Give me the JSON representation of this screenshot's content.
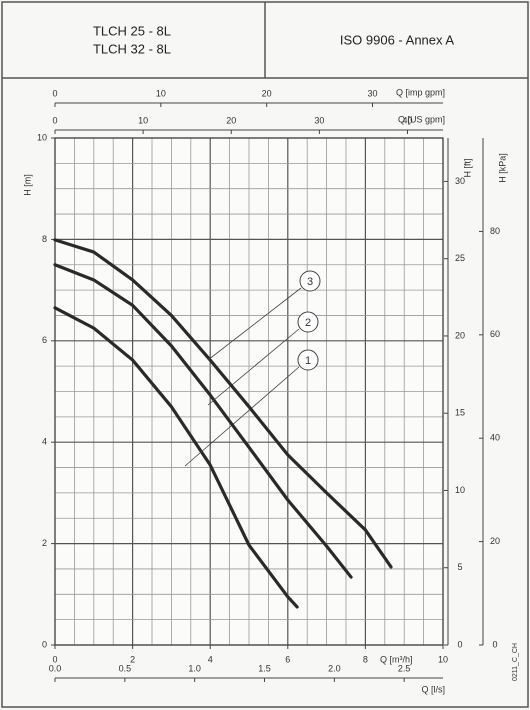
{
  "header": {
    "models": [
      "TLCH 25 - 8L",
      "TLCH 32 - 8L"
    ],
    "standard": "ISO 9906 - Annex A",
    "code": "0211_C_CH"
  },
  "chart_data": {
    "type": "line",
    "x_label": "Q [m³/h]",
    "y_label": "H [m]",
    "xlim": [
      0,
      10
    ],
    "ylim": [
      0,
      10
    ],
    "xticks": [
      0,
      2,
      4,
      6,
      8,
      10
    ],
    "yticks": [
      0,
      2,
      4,
      6,
      8,
      10
    ],
    "grid": true,
    "xgrid": [
      0,
      0.5,
      1,
      1.5,
      2,
      2.5,
      3,
      3.5,
      4,
      4.5,
      5,
      5.5,
      6,
      6.5,
      7,
      7.5,
      8,
      8.5,
      9,
      9.5,
      10
    ],
    "ygrid": [
      0,
      0.5,
      1,
      1.5,
      2,
      2.5,
      3,
      3.5,
      4,
      4.5,
      5,
      5.5,
      6,
      6.5,
      7,
      7.5,
      8,
      8.5,
      9,
      9.5,
      10
    ],
    "series": [
      {
        "name": "1",
        "color": "#2a2a2a",
        "x": [
          0,
          1,
          2,
          3,
          4,
          5,
          6,
          6.24
        ],
        "values": [
          6.65,
          6.25,
          5.62,
          4.7,
          3.55,
          1.97,
          0.95,
          0.75
        ]
      },
      {
        "name": "2",
        "color": "#2a2a2a",
        "x": [
          0,
          1,
          2,
          3,
          4,
          5,
          6,
          7,
          7.63
        ],
        "values": [
          7.5,
          7.2,
          6.7,
          5.9,
          4.93,
          3.9,
          2.86,
          1.95,
          1.34
        ]
      },
      {
        "name": "3",
        "color": "#2a2a2a",
        "x": [
          0,
          1,
          2,
          3,
          4,
          5,
          6,
          7,
          8,
          8.66
        ],
        "values": [
          7.99,
          7.75,
          7.2,
          6.5,
          5.62,
          4.7,
          3.75,
          3.0,
          2.27,
          1.54
        ]
      }
    ],
    "secondary_axes": [
      {
        "label": "Q [imp gpm]",
        "position": "top",
        "lim": [
          0,
          36.66
        ],
        "ticks": [
          0,
          10,
          20,
          30
        ]
      },
      {
        "label": "Q [US gpm]",
        "position": "top",
        "lim": [
          0,
          44.03
        ],
        "ticks": [
          0,
          10,
          20,
          30,
          40
        ]
      },
      {
        "label": "H [ft]",
        "position": "right",
        "lim": [
          0,
          32.81
        ],
        "ticks": [
          0,
          5,
          10,
          15,
          20,
          25,
          30
        ]
      },
      {
        "label": "H [kPa]",
        "position": "right",
        "lim": [
          0,
          98.07
        ],
        "ticks": [
          0,
          20,
          40,
          60,
          80
        ]
      },
      {
        "label": "Q [l/s]",
        "position": "bottom",
        "lim": [
          0,
          2.778
        ],
        "ticks": [
          {
            "value": 0,
            "label": "0.0"
          },
          0.5,
          {
            "value": 1,
            "label": "1.0"
          },
          1.5,
          {
            "value": 2,
            "label": "2.0"
          },
          2.5
        ]
      }
    ]
  }
}
